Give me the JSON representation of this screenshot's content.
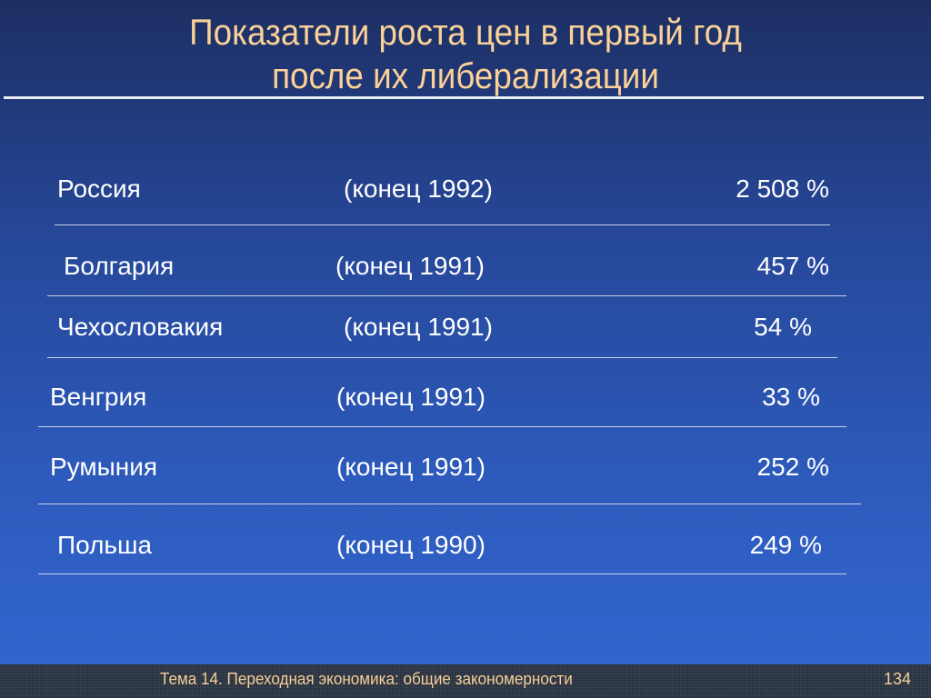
{
  "slide": {
    "title_line1": "Показатели роста цен в первый год",
    "title_line2": "после их либерализации"
  },
  "table": {
    "rows": [
      {
        "country": "Россия",
        "period": "(конец 1992)",
        "value": "2 508 %"
      },
      {
        "country": "Болгария",
        "period": "(конец 1991)",
        "value": "457 %"
      },
      {
        "country": "Чехословакия",
        "period": "(конец 1991)",
        "value": "54 %"
      },
      {
        "country": "Венгрия",
        "period": "(конец 1991)",
        "value": "33 %"
      },
      {
        "country": "Румыния",
        "period": "(конец 1991)",
        "value": "252 %"
      },
      {
        "country": "Польша",
        "period": "(конец 1990)",
        "value": "249 %"
      }
    ]
  },
  "footer": {
    "topic": "Тема 14.  Переходная экономика: общие закономерности",
    "page_number": "134"
  },
  "colors": {
    "title": "#fbd197",
    "text": "#ffffff",
    "background": "#2d5bbd"
  }
}
